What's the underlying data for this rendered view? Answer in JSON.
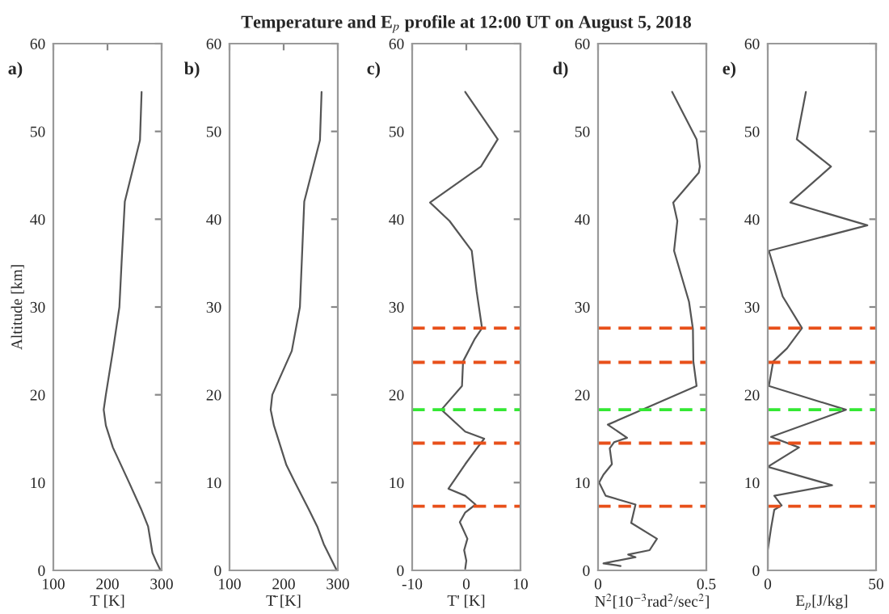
{
  "chart_data": [
    {
      "type": "line",
      "ylabel": "Altitude [km]",
      "xlabel": "T [K]",
      "annotations": [
        "a)"
      ],
      "xlim": [
        100,
        300
      ],
      "xticks": [
        100,
        200,
        300
      ],
      "ylim": [
        0,
        60
      ],
      "yticks": [
        0,
        10,
        20,
        30,
        40,
        50,
        60
      ],
      "series": [
        {
          "color": "#555555",
          "x": [
            298,
            290,
            283,
            275,
            262,
            240,
            210,
            197,
            193,
            197,
            210,
            222,
            226,
            232,
            260,
            263
          ],
          "values": [
            0,
            1,
            2,
            5,
            7,
            10,
            14,
            16.5,
            18.3,
            20,
            25,
            30,
            35,
            42,
            49,
            54.5
          ]
        }
      ]
    },
    {
      "type": "line",
      "xlabel": "T̄ [K]",
      "annotations": [
        "b)"
      ],
      "xlim": [
        100,
        300
      ],
      "xticks": [
        100,
        200,
        300
      ],
      "ylim": [
        0,
        60
      ],
      "yticks": [
        0,
        10,
        20,
        30,
        40,
        50,
        60
      ],
      "series": [
        {
          "color": "#555555",
          "x": [
            298,
            274,
            262,
            246,
            221,
            205,
            182,
            176,
            179,
            215,
            230,
            238,
            267,
            270
          ],
          "values": [
            0,
            3,
            5,
            7,
            10,
            12,
            16.5,
            18.3,
            20,
            25,
            30,
            42,
            49,
            54.5
          ]
        }
      ]
    },
    {
      "type": "line",
      "title": "Temperature and E$_{p}$ profile at 12:00 UT on August 5, 2018",
      "xlabel": "T' [K]",
      "annotations": [
        "c)"
      ],
      "xlim": [
        -10,
        10
      ],
      "xticks": [
        -10,
        0,
        10
      ],
      "ylim": [
        0,
        60
      ],
      "yticks": [
        0,
        10,
        20,
        30,
        40,
        50,
        60
      ],
      "series": [
        {
          "color": "#555555",
          "x": [
            -0.2,
            0,
            -0.4,
            0.2,
            -1.2,
            -0.2,
            1.7,
            -0.2,
            -3.3,
            -0.2,
            1.7,
            3.3,
            -0.2,
            -4.6,
            -0.8,
            -0.6,
            1.5,
            2.9,
            1.9,
            1.0,
            -3.1,
            -6.7,
            2.7,
            5.8,
            -0.2
          ],
          "values": [
            0.2,
            1.1,
            2.3,
            3.6,
            5.5,
            6.6,
            7.5,
            8.5,
            9.3,
            12.1,
            13.7,
            15.0,
            15.8,
            18.3,
            21.0,
            23.8,
            26.3,
            27.6,
            31.8,
            36.4,
            39.8,
            41.9,
            46,
            49.1,
            54.5
          ]
        }
      ],
      "ref_lines": [
        {
          "axis": "y",
          "value": 7.3,
          "color": "#e8501a",
          "line_style": "dashed"
        },
        {
          "axis": "y",
          "value": 14.5,
          "color": "#e8501a",
          "line_style": "dashed"
        },
        {
          "axis": "y",
          "value": 18.3,
          "color": "#33e833",
          "line_style": "dashed"
        },
        {
          "axis": "y",
          "value": 23.7,
          "color": "#e8501a",
          "line_style": "dashed"
        },
        {
          "axis": "y",
          "value": 27.6,
          "color": "#e8501a",
          "line_style": "dashed"
        }
      ]
    },
    {
      "type": "line",
      "xlabel": "N$^{2}$[10$^{−3}$rad$^{2}$/sec$^{2}$]",
      "annotations": [
        "d)"
      ],
      "xlim": [
        0,
        0.5
      ],
      "xticks": [
        0,
        0.5
      ],
      "ylim": [
        0,
        60
      ],
      "yticks": [
        0,
        10,
        20,
        30,
        40,
        50,
        60
      ],
      "series": [
        {
          "color": "#555555",
          "x": [
            0.104,
            0.025,
            0.173,
            0.139,
            0.238,
            0.272,
            0.153,
            0.173,
            0.035,
            0.005,
            0.025,
            0.064,
            0.054,
            0.074,
            0.134,
            0.045,
            0.455,
            0.44,
            0.438,
            0.42,
            0.351,
            0.366,
            0.347,
            0.465,
            0.47,
            0.455,
            0.342
          ],
          "values": [
            0.5,
            0.8,
            1.5,
            1.8,
            2.3,
            3.6,
            5.4,
            7.5,
            8.5,
            10,
            10.9,
            12.1,
            13.9,
            14.6,
            15.1,
            16.6,
            21,
            23.8,
            27.5,
            30.6,
            36.4,
            39.8,
            41.9,
            45.3,
            46,
            49.1,
            54.5
          ]
        }
      ],
      "ref_lines": [
        {
          "axis": "y",
          "value": 7.3,
          "color": "#e8501a",
          "line_style": "dashed"
        },
        {
          "axis": "y",
          "value": 14.5,
          "color": "#e8501a",
          "line_style": "dashed"
        },
        {
          "axis": "y",
          "value": 18.3,
          "color": "#33e833",
          "line_style": "dashed"
        },
        {
          "axis": "y",
          "value": 23.7,
          "color": "#e8501a",
          "line_style": "dashed"
        },
        {
          "axis": "y",
          "value": 27.6,
          "color": "#e8501a",
          "line_style": "dashed"
        }
      ]
    },
    {
      "type": "line",
      "xlabel": "E$_{p}$[J/kg]",
      "annotations": [
        "e)"
      ],
      "xlim": [
        0,
        50
      ],
      "xticks": [
        0,
        50
      ],
      "ylim": [
        0,
        60
      ],
      "yticks": [
        0,
        10,
        20,
        30,
        40,
        50,
        60
      ],
      "series": [
        {
          "color": "#555555",
          "x": [
            0,
            0,
            1.5,
            3,
            6.4,
            3,
            29.7,
            0,
            14.4,
            1.5,
            36.1,
            0.5,
            2.5,
            8.9,
            15.8,
            6.9,
            0.5,
            46,
            10.4,
            29.2,
            13.4,
            17.6
          ],
          "values": [
            0.2,
            2.3,
            4.8,
            6.9,
            7.4,
            8.5,
            9.7,
            11.8,
            14,
            15.2,
            18.3,
            21,
            23.8,
            25.3,
            27.6,
            31.2,
            36.4,
            39.3,
            41.9,
            46,
            49.1,
            54.5
          ]
        }
      ],
      "ref_lines": [
        {
          "axis": "y",
          "value": 7.3,
          "color": "#e8501a",
          "line_style": "dashed"
        },
        {
          "axis": "y",
          "value": 14.5,
          "color": "#e8501a",
          "line_style": "dashed"
        },
        {
          "axis": "y",
          "value": 18.3,
          "color": "#33e833",
          "line_style": "dashed"
        },
        {
          "axis": "y",
          "value": 23.7,
          "color": "#e8501a",
          "line_style": "dashed"
        },
        {
          "axis": "y",
          "value": 27.6,
          "color": "#e8501a",
          "line_style": "dashed"
        }
      ]
    }
  ]
}
